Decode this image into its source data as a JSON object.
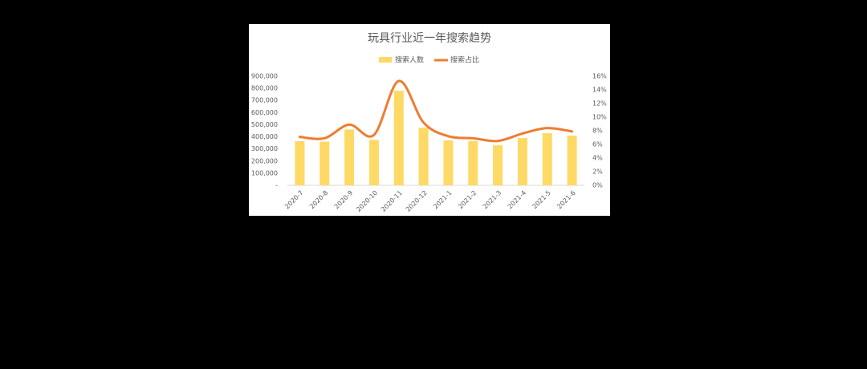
{
  "chart_data": {
    "type": "bar-line",
    "title": "玩具行业近一年搜索趋势",
    "categories": [
      "2020-7",
      "2020-8",
      "2020-9",
      "2020-10",
      "2020-11",
      "2020-12",
      "2021-1",
      "2021-2",
      "2021-3",
      "2021-4",
      "2021-5",
      "2021-6"
    ],
    "series": [
      {
        "name": "搜索人数",
        "type": "bar",
        "color": "#ffd966",
        "values": [
          365000,
          360000,
          460000,
          375000,
          780000,
          475000,
          370000,
          365000,
          330000,
          390000,
          430000,
          410000
        ]
      },
      {
        "name": "搜索占比",
        "type": "line",
        "axis": "y2",
        "color": "#ed7d31",
        "values": [
          7.1,
          6.9,
          8.9,
          7.4,
          15.3,
          9.2,
          7.2,
          6.9,
          6.5,
          7.6,
          8.4,
          7.9
        ]
      }
    ],
    "ylim": [
      0,
      900000
    ],
    "yticks": [
      {
        "value": 0,
        "label": "-"
      },
      {
        "value": 100000,
        "label": "100,000"
      },
      {
        "value": 200000,
        "label": "200,000"
      },
      {
        "value": 300000,
        "label": "300,000"
      },
      {
        "value": 400000,
        "label": "400,000"
      },
      {
        "value": 500000,
        "label": "500,000"
      },
      {
        "value": 600000,
        "label": "600,000"
      },
      {
        "value": 700000,
        "label": "700,000"
      },
      {
        "value": 800000,
        "label": "800,000"
      },
      {
        "value": 900000,
        "label": "900,000"
      }
    ],
    "y2lim": [
      0,
      16
    ],
    "y2ticks": [
      {
        "value": 0,
        "label": "0%"
      },
      {
        "value": 2,
        "label": "2%"
      },
      {
        "value": 4,
        "label": "4%"
      },
      {
        "value": 6,
        "label": "6%"
      },
      {
        "value": 8,
        "label": "8%"
      },
      {
        "value": 10,
        "label": "10%"
      },
      {
        "value": 12,
        "label": "12%"
      },
      {
        "value": 14,
        "label": "14%"
      },
      {
        "value": 16,
        "label": "16%"
      }
    ],
    "legend": "top"
  }
}
